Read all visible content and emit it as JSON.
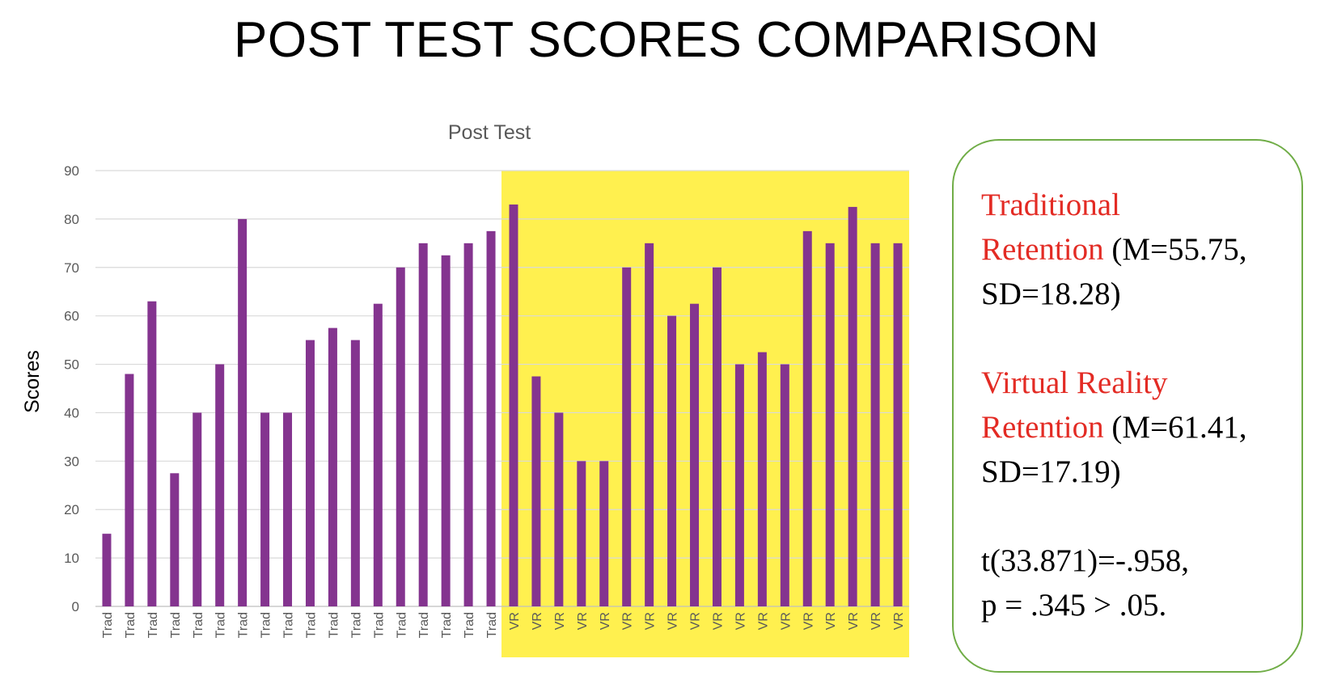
{
  "slide": {
    "title": "POST TEST SCORES COMPARISON"
  },
  "chart_data": {
    "type": "bar",
    "title": "Post Test",
    "xlabel": "",
    "ylabel": "Scores",
    "ylim": [
      0,
      90
    ],
    "yticks": [
      0,
      10,
      20,
      30,
      40,
      50,
      60,
      70,
      80,
      90
    ],
    "grid": true,
    "legend": "none",
    "bar_color": "#84348f",
    "highlight_color": "#fff04f",
    "highlight_group": "VR",
    "categories": [
      "Trad",
      "Trad",
      "Trad",
      "Trad",
      "Trad",
      "Trad",
      "Trad",
      "Trad",
      "Trad",
      "Trad",
      "Trad",
      "Trad",
      "Trad",
      "Trad",
      "Trad",
      "Trad",
      "Trad",
      "Trad",
      "VR",
      "VR",
      "VR",
      "VR",
      "VR",
      "VR",
      "VR",
      "VR",
      "VR",
      "VR",
      "VR",
      "VR",
      "VR",
      "VR",
      "VR",
      "VR",
      "VR",
      "VR"
    ],
    "values": [
      15,
      48,
      63,
      27.5,
      40,
      50,
      80,
      40,
      40,
      55,
      57.5,
      55,
      62.5,
      70,
      75,
      72.5,
      75,
      77.5,
      83,
      47.5,
      40,
      30,
      30,
      70,
      75,
      60,
      62.5,
      70,
      50,
      52.5,
      50,
      77.5,
      75,
      82.5,
      75,
      75
    ]
  },
  "stats": {
    "border_color": "#70ad47",
    "label_color": "#e32b24",
    "traditional": {
      "label_line1": "Traditional",
      "label_line2": "Retention",
      "mean_text": "(M=55.75,",
      "sd_text": "SD=18.28)"
    },
    "vr": {
      "label_line1": "Virtual Reality",
      "label_line2": "Retention",
      "mean_text": "(M=61.41,",
      "sd_text": "SD=17.19)"
    },
    "test": {
      "line1": "t(33.871)=-.958,",
      "line2": "p = .345 > .05."
    }
  }
}
